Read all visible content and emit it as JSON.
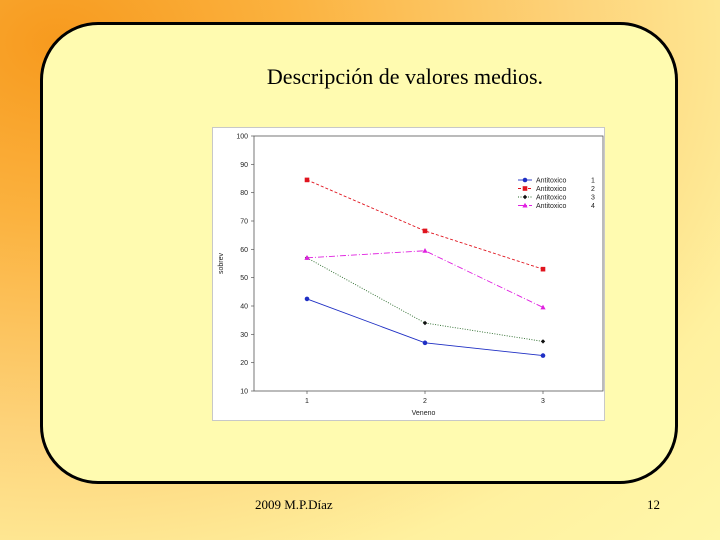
{
  "slide": {
    "title": "Descripción de valores medios.",
    "footer_left": "2009   M.P.Díaz",
    "page_number": "12"
  },
  "chart_data": {
    "type": "line",
    "xlabel": "Veneno",
    "ylabel": "sobrev",
    "categories": [
      "1",
      "2",
      "3"
    ],
    "ylim": [
      10,
      100
    ],
    "yticks": [
      "10",
      "20",
      "30",
      "40",
      "50",
      "60",
      "70",
      "80",
      "90",
      "100"
    ],
    "grid": false,
    "legend_position": "top-right",
    "series": [
      {
        "name": "Antitoxico",
        "code": "1",
        "color": "#1f2fc4",
        "marker": "circle",
        "dash": "",
        "values": [
          42.5,
          27,
          22.5
        ]
      },
      {
        "name": "Antitoxico",
        "code": "2",
        "color": "#e0141e",
        "marker": "square",
        "dash": "3,2",
        "values": [
          84.5,
          66.5,
          53
        ]
      },
      {
        "name": "Antitoxico",
        "code": "3",
        "color": "#2a6a2a",
        "marker": "diamond",
        "dash": "1,1.5",
        "values": [
          57,
          34,
          27.5
        ]
      },
      {
        "name": "Antitoxico",
        "code": "4",
        "color": "#e020e0",
        "marker": "triangle",
        "dash": "6,2,1,2",
        "values": [
          57,
          59.5,
          39.5
        ]
      }
    ]
  }
}
